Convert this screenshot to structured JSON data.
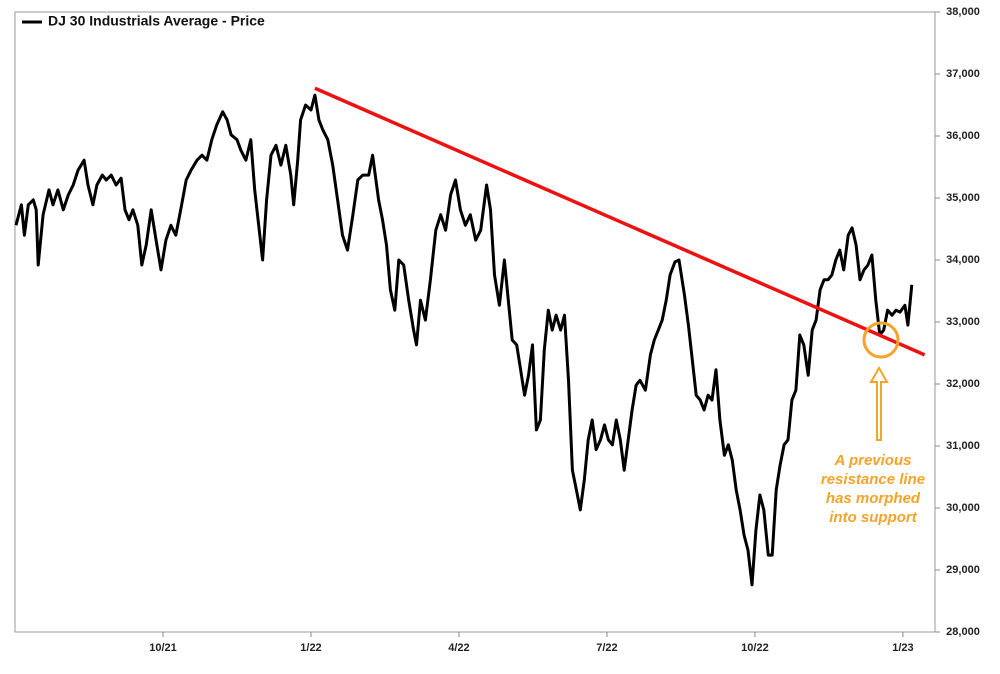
{
  "chart_data": {
    "type": "line",
    "xlim": [
      7.0,
      25.65
    ],
    "ylim": [
      28000,
      38000
    ],
    "xticks": [
      {
        "value": 10,
        "label": "10/21"
      },
      {
        "value": 13,
        "label": "1/22"
      },
      {
        "value": 16,
        "label": "4/22"
      },
      {
        "value": 19,
        "label": "7/22"
      },
      {
        "value": 22,
        "label": "10/22"
      },
      {
        "value": 25,
        "label": "1/23"
      }
    ],
    "yticks": [
      {
        "value": 28000,
        "label": "28,000"
      },
      {
        "value": 29000,
        "label": "29,000"
      },
      {
        "value": 30000,
        "label": "30,000"
      },
      {
        "value": 31000,
        "label": "31,000"
      },
      {
        "value": 32000,
        "label": "32,000"
      },
      {
        "value": 33000,
        "label": "33,000"
      },
      {
        "value": 34000,
        "label": "34,000"
      },
      {
        "value": 35000,
        "label": "35,000"
      },
      {
        "value": 36000,
        "label": "36,000"
      },
      {
        "value": 37000,
        "label": "37,000"
      },
      {
        "value": 38000,
        "label": "38,000"
      }
    ],
    "grid": false,
    "legend": "top-left",
    "series": [
      {
        "name": "DJ 30 Industrials Average - Price",
        "color": "#000000",
        "x": [
          7.02,
          7.13,
          7.19,
          7.27,
          7.37,
          7.43,
          7.47,
          7.57,
          7.69,
          7.77,
          7.87,
          7.98,
          8.08,
          8.18,
          8.28,
          8.4,
          8.48,
          8.58,
          8.66,
          8.77,
          8.85,
          8.95,
          9.05,
          9.15,
          9.23,
          9.31,
          9.39,
          9.49,
          9.57,
          9.66,
          9.76,
          9.86,
          9.96,
          10.06,
          10.16,
          10.26,
          10.36,
          10.47,
          10.57,
          10.69,
          10.79,
          10.89,
          10.99,
          11.09,
          11.21,
          11.3,
          11.38,
          11.5,
          11.58,
          11.68,
          11.78,
          11.86,
          11.94,
          12.02,
          12.1,
          12.19,
          12.29,
          12.39,
          12.49,
          12.59,
          12.65,
          12.73,
          12.79,
          12.89,
          13.0,
          13.08,
          13.16,
          13.24,
          13.34,
          13.44,
          13.54,
          13.64,
          13.74,
          13.85,
          13.95,
          14.05,
          14.17,
          14.25,
          14.37,
          14.45,
          14.53,
          14.61,
          14.7,
          14.78,
          14.88,
          14.98,
          15.08,
          15.14,
          15.22,
          15.32,
          15.42,
          15.53,
          15.63,
          15.73,
          15.83,
          15.93,
          16.03,
          16.13,
          16.23,
          16.34,
          16.44,
          16.56,
          16.64,
          16.72,
          16.82,
          16.92,
          17.0,
          17.08,
          17.17,
          17.25,
          17.33,
          17.41,
          17.49,
          17.57,
          17.65,
          17.73,
          17.81,
          17.89,
          17.97,
          18.06,
          18.14,
          18.22,
          18.3,
          18.38,
          18.46,
          18.54,
          18.62,
          18.7,
          18.78,
          18.87,
          18.95,
          19.03,
          19.11,
          19.19,
          19.27,
          19.35,
          19.43,
          19.51,
          19.59,
          19.67,
          19.78,
          19.88,
          19.96,
          20.04,
          20.12,
          20.2,
          20.28,
          20.38,
          20.46,
          20.57,
          20.65,
          20.73,
          20.81,
          20.89,
          20.97,
          21.05,
          21.13,
          21.21,
          21.29,
          21.38,
          21.46,
          21.54,
          21.62,
          21.7,
          21.78,
          21.86,
          21.94,
          22.02,
          22.1,
          22.18,
          22.27,
          22.35,
          22.43,
          22.51,
          22.59,
          22.67,
          22.75,
          22.83,
          22.91,
          22.99,
          23.08,
          23.16,
          23.24,
          23.32,
          23.4,
          23.48,
          23.56,
          23.64,
          23.72,
          23.8,
          23.89,
          23.97,
          24.05,
          24.13,
          24.21,
          24.29,
          24.37,
          24.45,
          24.53,
          24.61,
          24.69,
          24.78,
          24.86,
          24.94,
          25.04,
          25.1,
          25.18
        ],
        "values": [
          34560,
          34890,
          34400,
          34890,
          34970,
          34810,
          33920,
          34730,
          35130,
          34890,
          35130,
          34810,
          35050,
          35210,
          35450,
          35610,
          35210,
          34890,
          35210,
          35370,
          35290,
          35370,
          35210,
          35320,
          34810,
          34650,
          34810,
          34560,
          33920,
          34240,
          34810,
          34320,
          33840,
          34320,
          34560,
          34400,
          34810,
          35290,
          35450,
          35610,
          35690,
          35610,
          35940,
          36180,
          36390,
          36260,
          36020,
          35940,
          35770,
          35610,
          35940,
          35130,
          34560,
          34000,
          34970,
          35690,
          35850,
          35530,
          35850,
          35370,
          34890,
          35610,
          36260,
          36500,
          36420,
          36660,
          36260,
          36100,
          35940,
          35530,
          34970,
          34400,
          34160,
          34730,
          35290,
          35370,
          35370,
          35690,
          34970,
          34650,
          34240,
          33520,
          33190,
          34000,
          33920,
          33350,
          32870,
          32630,
          33350,
          33030,
          33680,
          34480,
          34730,
          34480,
          35050,
          35290,
          34810,
          34560,
          34730,
          34320,
          34480,
          35210,
          34810,
          33760,
          33270,
          34000,
          33350,
          32710,
          32630,
          32230,
          31820,
          32140,
          32630,
          31260,
          31420,
          32550,
          33190,
          32870,
          33110,
          32870,
          33110,
          32060,
          30610,
          30290,
          29970,
          30450,
          31100,
          31420,
          30940,
          31100,
          31340,
          31100,
          31020,
          31420,
          31100,
          30610,
          31100,
          31580,
          31980,
          32060,
          31900,
          32470,
          32710,
          32870,
          33030,
          33350,
          33760,
          33970,
          34000,
          33440,
          32950,
          32390,
          31820,
          31740,
          31580,
          31820,
          31740,
          32230,
          31420,
          30850,
          31020,
          30770,
          30290,
          29970,
          29560,
          29320,
          28760,
          29640,
          30210,
          29970,
          29240,
          29240,
          30290,
          30690,
          31020,
          31100,
          31740,
          31900,
          32790,
          32630,
          32140,
          32870,
          33030,
          33520,
          33680,
          33680,
          33760,
          34000,
          34160,
          33840,
          34400,
          34520,
          34240,
          33680,
          33840,
          33920,
          34080,
          33350,
          32790,
          32870,
          33190,
          33110,
          33190,
          33160,
          33270,
          32950,
          33600
        ]
      }
    ],
    "trendline": {
      "color": "#ee1111",
      "x": [
        13.08,
        25.44
      ],
      "values": [
        36770,
        32470
      ]
    },
    "annotation": {
      "color": "#f5a32a",
      "lines": [
        "A previous",
        "resistance line",
        "has morphed",
        "into support"
      ]
    }
  }
}
